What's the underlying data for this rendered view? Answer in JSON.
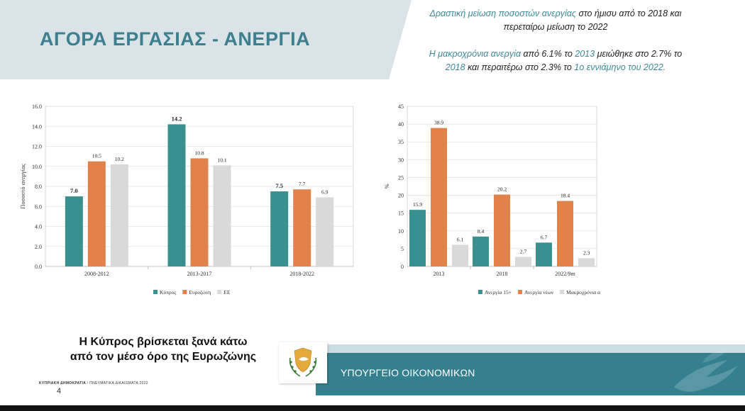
{
  "title": "ΑΓΟΡΑ ΕΡΓΑΣΙΑΣ - ΑΝΕΡΓΙΑ",
  "notes": {
    "n1_a": "Δραστική μείωση ποσοστών ανεργίας",
    "n1_b": " στο ήμισυ από το 2018 και περεταίρω μείωση το 2022",
    "n2_a": "Η μακροχρόνια ανεργία",
    "n2_b": " από 6.1% το ",
    "n2_c": "2013",
    "n2_d": " μειώθηκε στο 2.7% το ",
    "n2_e": "2018",
    "n2_f": " και περαιτέρω στο 2.3% το ",
    "n2_g": "1ο εννιάμηνο του 2022."
  },
  "message": {
    "line1": "Η Κύπρος βρίσκεται ξανά κάτω",
    "line2": "από τον μέσο όρο της Ευρωζώνης"
  },
  "footer": {
    "org_bold": "ΚΥΠΡΙΑΚΗ ΔΗΜΟΚΡΑΤΙΑ",
    "org_rest": " / ΠΝΕΥΜΑΤΙΚΑ ΔΙΚΑΙΩΜΑΤΑ 2022",
    "page": "4",
    "ministry": "ΥΠΟΥΡΓΕΙΟ ΟΙΚΟΝΟΜΙΚΩΝ"
  },
  "colors": {
    "teal": "#3a9090",
    "orange": "#e0824a",
    "grey": "#d9d9d9",
    "title": "#3d7f8e",
    "band": "#34808f"
  },
  "icons": {
    "emblem": "cyprus-emblem-icon",
    "dove": "dove-watermark-icon"
  },
  "chart_data": [
    {
      "type": "bar",
      "categories": [
        "2008-2012",
        "2013-2017",
        "2018-2022"
      ],
      "series": [
        {
          "name": "Κύπρος",
          "values": [
            7.0,
            14.2,
            7.5
          ]
        },
        {
          "name": "Ευροζώνη",
          "values": [
            10.5,
            10.8,
            7.7
          ]
        },
        {
          "name": "ΕΕ",
          "values": [
            10.2,
            10.1,
            6.9
          ]
        }
      ],
      "labels": [
        [
          "7.0",
          "14.2",
          "7.5"
        ],
        [
          "10.5",
          "10.8",
          "7.7"
        ],
        [
          "10.2",
          "10.1",
          "6.9"
        ]
      ],
      "bold_series": [
        0
      ],
      "ylabel": "Ποσοστό ανεργίας",
      "ylim": [
        0,
        16
      ],
      "yticks": [
        "0.0",
        "2.0",
        "4.0",
        "6.0",
        "8.0",
        "10.0",
        "12.0",
        "14.0",
        "16.0"
      ],
      "grid": true,
      "legend": "bottom"
    },
    {
      "type": "bar",
      "categories": [
        "2013",
        "2018",
        "2022/9m"
      ],
      "series": [
        {
          "name": "Ανεργία 15+",
          "values": [
            15.9,
            8.4,
            6.7
          ]
        },
        {
          "name": "Ανεργία νέων",
          "values": [
            38.9,
            20.2,
            18.4
          ]
        },
        {
          "name": "Μακροχρόνια ανεργία",
          "values": [
            6.1,
            2.7,
            2.3
          ]
        }
      ],
      "labels": [
        [
          "15.9",
          "8.4",
          "6.7"
        ],
        [
          "38.9",
          "20.2",
          "18.4"
        ],
        [
          "6.1",
          "2.7",
          "2.3"
        ]
      ],
      "bold_series": [],
      "ylabel": "%",
      "ylim": [
        0,
        45
      ],
      "yticks": [
        "0",
        "5",
        "10",
        "15",
        "20",
        "25",
        "30",
        "35",
        "40",
        "45"
      ],
      "grid": true,
      "legend": "bottom"
    }
  ]
}
